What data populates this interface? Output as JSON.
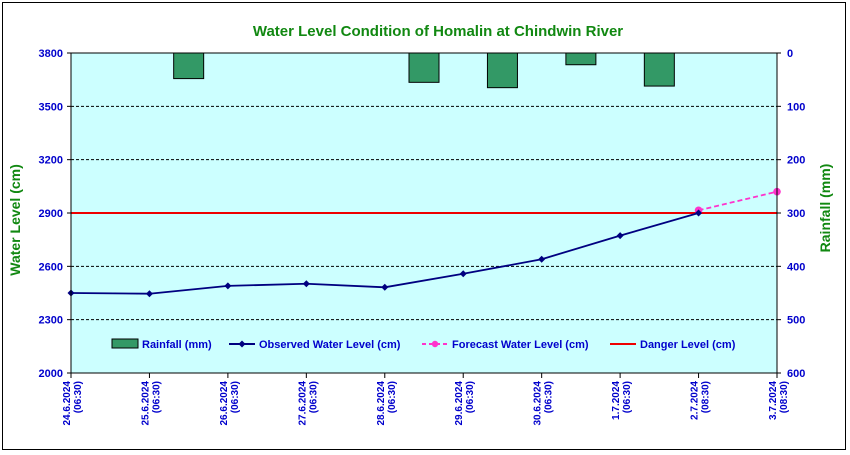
{
  "chart_data": {
    "type": "line",
    "title": "Water Level Condition of Homalin at Chindwin River",
    "ylabel": "Water Level (cm)",
    "y2label": "Rainfall (mm)",
    "ylim": [
      2000,
      3800
    ],
    "yticks": [
      2000,
      2300,
      2600,
      2900,
      3200,
      3500,
      3800
    ],
    "y2lim": [
      0,
      600
    ],
    "y2ticks": [
      0,
      100,
      200,
      300,
      400,
      500,
      600
    ],
    "y2_inverted": true,
    "categories": [
      [
        "24.6.2024",
        "(06:30)"
      ],
      [
        "25.6.2024",
        "(06:30)"
      ],
      [
        "26.6.2024",
        "(06:30)"
      ],
      [
        "27.6.2024",
        "(06:30)"
      ],
      [
        "28.6.2024",
        "(06:30)"
      ],
      [
        "29.6.2024",
        "(06:30)"
      ],
      [
        "30.6.2024",
        "(06:30)"
      ],
      [
        "1.7.2024",
        "(06:30)"
      ],
      [
        "2.7.2024",
        "(08:30)"
      ],
      [
        "3.7.2024",
        "(08:30)"
      ]
    ],
    "series": [
      {
        "name": "Rainfall (mm)",
        "type": "bar",
        "axis": "right",
        "color": "#339966",
        "values": [
          0,
          48,
          0,
          0,
          55,
          65,
          22,
          0,
          62,
          0
        ],
        "x_positions": [
          0,
          1,
          2,
          3,
          4,
          5,
          6,
          7,
          7,
          8
        ]
      },
      {
        "name": "Observed Water Level (cm)",
        "type": "line",
        "color": "#000080",
        "values": [
          2450,
          2446,
          2490,
          2502,
          2482,
          2558,
          2640,
          2773,
          2900,
          null
        ]
      },
      {
        "name": "Forecast Water Level (cm)",
        "type": "line",
        "dashed": true,
        "color": "#ff33cc",
        "values": [
          null,
          null,
          null,
          null,
          null,
          null,
          null,
          null,
          2915,
          3020
        ]
      },
      {
        "name": "Danger Level (cm)",
        "type": "hline",
        "color": "#ee0000",
        "value": 2900
      }
    ],
    "grid": true,
    "legend_position": "bottom-inside"
  },
  "colors": {
    "plot_background": "#ccffff",
    "title": "#118811",
    "tick_text": "#0000cc"
  }
}
